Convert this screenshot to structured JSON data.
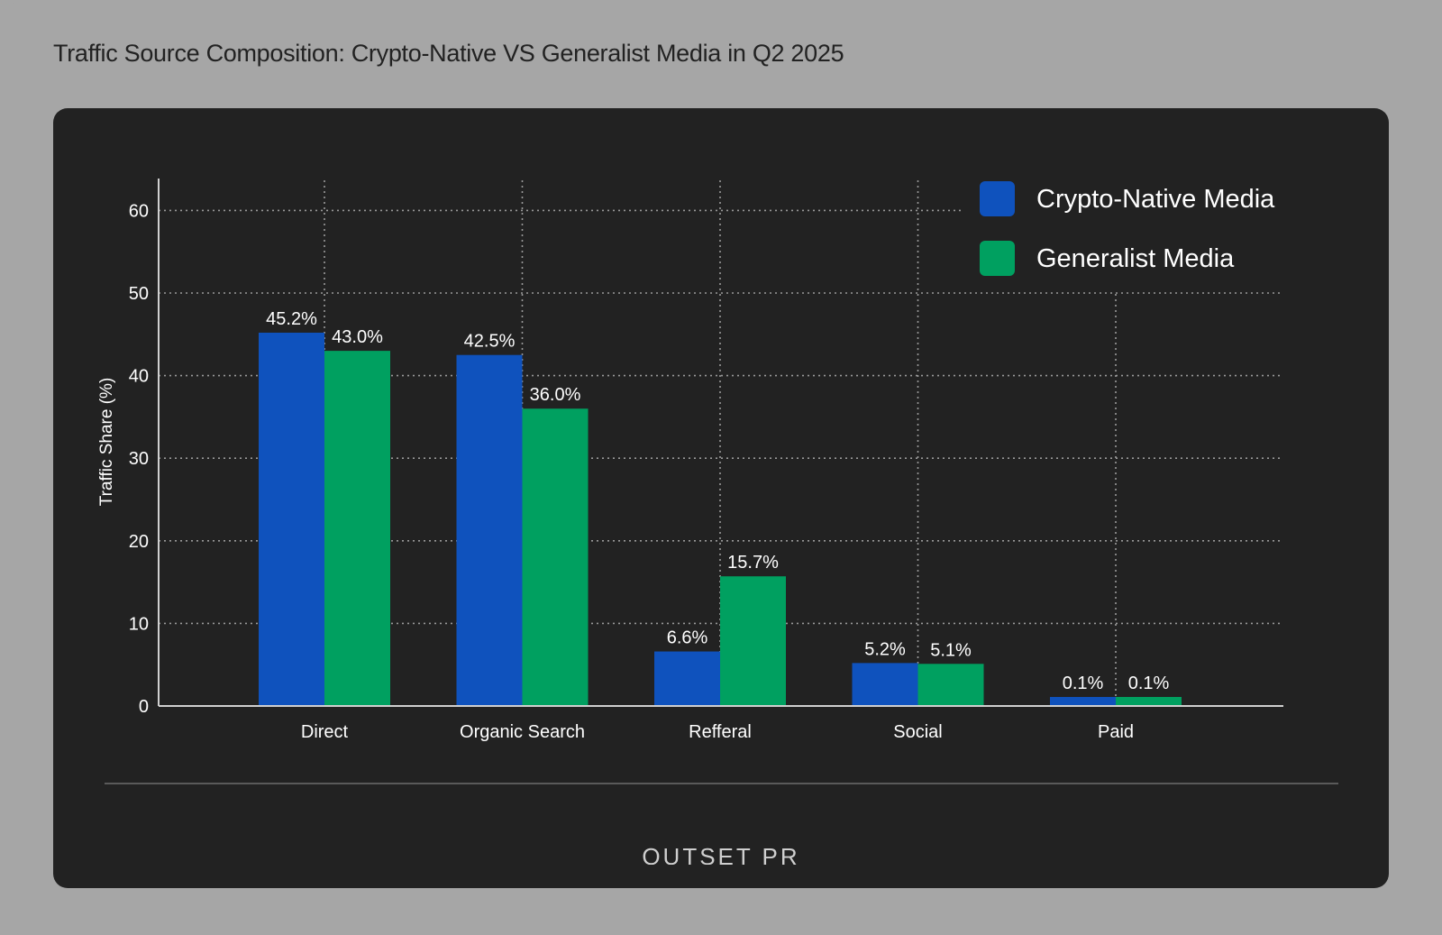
{
  "page": {
    "title": "Traffic Source Composition: Crypto-Native VS Generalist Media in Q2 2025",
    "brand": "OUTSET PR"
  },
  "colors": {
    "background": "#a6a6a6",
    "panel": "#222222",
    "crypto": "#0f52bd",
    "generalist": "#00a060",
    "grid": "#9a9a9a",
    "text": "#ffffff",
    "axis": "#d0d0d0"
  },
  "chart_data": {
    "type": "bar",
    "title": "Traffic Source Composition: Crypto-Native VS Generalist Media in Q2 2025",
    "xlabel": "",
    "ylabel": "Traffic Share (%)",
    "ylim": [
      0,
      64
    ],
    "yticks": [
      0,
      10,
      20,
      30,
      40,
      50,
      60
    ],
    "grid": true,
    "legend_position": "top-right",
    "categories": [
      "Direct",
      "Organic Search",
      "Refferal",
      "Social",
      "Paid"
    ],
    "series": [
      {
        "name": "Crypto-Native Media",
        "color": "#0f52bd",
        "values": [
          45.2,
          42.5,
          6.6,
          5.2,
          0.1
        ],
        "labels": [
          "45.2%",
          "42.5%",
          "6.6%",
          "5.2%",
          "0.1%"
        ]
      },
      {
        "name": "Generalist Media",
        "color": "#00a060",
        "values": [
          43.0,
          36.0,
          15.7,
          5.1,
          0.1
        ],
        "labels": [
          "43.0%",
          "36.0%",
          "15.7%",
          "5.1%",
          "0.1%"
        ]
      }
    ]
  }
}
